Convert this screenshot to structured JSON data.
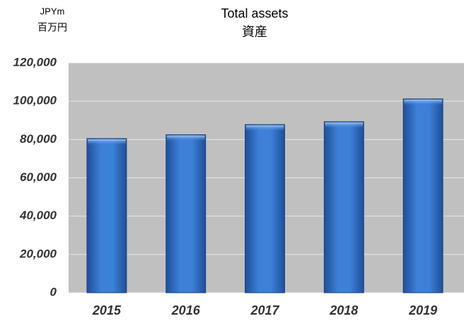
{
  "chart_data": {
    "type": "bar",
    "title": "Total assets",
    "subtitle": "資産",
    "ylabel": "JPYm",
    "ylabel_sub": "百万円",
    "categories": [
      "2015",
      "2016",
      "2017",
      "2018",
      "2019"
    ],
    "values": [
      80500,
      82500,
      87800,
      89300,
      101200
    ],
    "color": "#3a7bd5",
    "ylim": [
      0,
      120000
    ],
    "yticks": [
      0,
      {
        "value": 20000,
        "label": "20,000"
      },
      {
        "value": 40000,
        "label": "40,000"
      },
      {
        "value": 60000,
        "label": "60,000"
      },
      {
        "value": 80000,
        "label": "80,000"
      },
      {
        "value": 100000,
        "label": "100,000"
      },
      {
        "value": 120000,
        "label": "120,000"
      }
    ],
    "grid": true
  }
}
